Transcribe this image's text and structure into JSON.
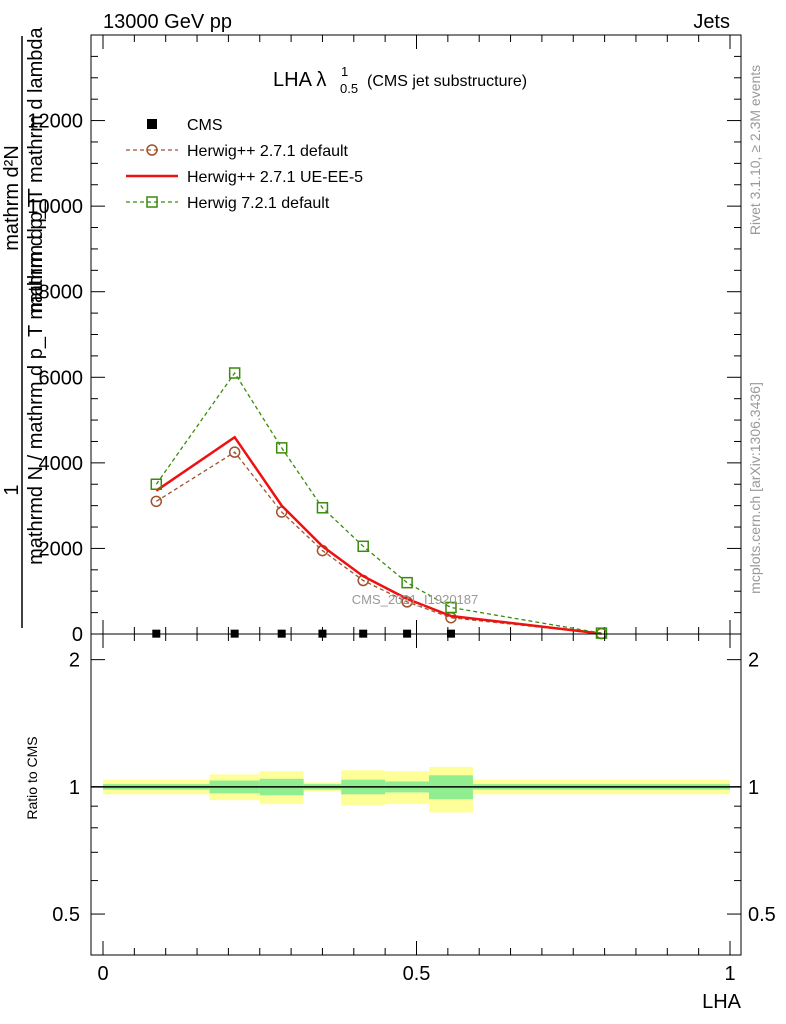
{
  "header": {
    "left": "13000 GeV pp",
    "right": "Jets"
  },
  "side_labels": {
    "rivet": "Rivet 3.1.10, ≥ 2.3M events",
    "mcplots": "mcplots.cern.ch [arXiv:1306.3436]"
  },
  "watermark": "CMS_2021_I1920187",
  "chart_data": [
    {
      "panel": "main",
      "type": "line",
      "title": "LHA λ",
      "title_sup": "1",
      "title_sub": "0.5",
      "title_note": "(CMS jet substructure)",
      "ylabel": {
        "numerator": "1",
        "denominator": "mathrmd N / mathrm d p_T mathrm d p_T",
        "numerator2": "mathrm d²N",
        "denominator2": "mathrm d p_T mathrm d lambda"
      },
      "xlim": [
        0,
        1
      ],
      "ylim": [
        0,
        14000
      ],
      "yticks": [
        0,
        2000,
        4000,
        6000,
        8000,
        10000,
        12000
      ],
      "ytick_labels": [
        "0",
        "2000",
        "4000",
        "6000",
        "8000",
        "10000",
        "12000"
      ],
      "legend_position": "top-left",
      "series": [
        {
          "name": "CMS",
          "style": "marker-square",
          "color": "#000000",
          "x": [
            0.085,
            0.21,
            0.285,
            0.35,
            0.415,
            0.485,
            0.555
          ],
          "y": [
            8,
            8,
            8,
            8,
            8,
            8,
            8
          ]
        },
        {
          "name": "Herwig++ 2.7.1 default",
          "style": "dashed-circle",
          "color": "#a0522d",
          "x": [
            0.085,
            0.21,
            0.285,
            0.35,
            0.415,
            0.485,
            0.555,
            0.795
          ],
          "y": [
            3100,
            4250,
            2850,
            1950,
            1250,
            750,
            380,
            10
          ]
        },
        {
          "name": "Herwig++ 2.7.1 UE-EE-5",
          "style": "solid",
          "color": "#ee1111",
          "x": [
            0.085,
            0.21,
            0.285,
            0.35,
            0.415,
            0.485,
            0.555,
            0.795
          ],
          "y": [
            3350,
            4600,
            3000,
            2050,
            1350,
            820,
            420,
            10
          ]
        },
        {
          "name": "Herwig 7.2.1 default",
          "style": "dashed-square",
          "color": "#3a8a0c",
          "x": [
            0.085,
            0.21,
            0.285,
            0.35,
            0.415,
            0.485,
            0.555,
            0.795
          ],
          "y": [
            3500,
            6100,
            4350,
            2950,
            2050,
            1200,
            620,
            20
          ]
        }
      ]
    },
    {
      "panel": "ratio",
      "type": "area",
      "ylabel": "Ratio to CMS",
      "xlabel": "LHA",
      "xlim": [
        0,
        1
      ],
      "ylim": [
        0.4,
        2.3
      ],
      "yscale": "log",
      "yticks": [
        0.5,
        1,
        2
      ],
      "ytick_labels": [
        "0.5",
        "1",
        "2"
      ],
      "xticks": [
        0,
        0.5,
        1
      ],
      "xtick_labels": [
        "0",
        "0.5",
        "1"
      ],
      "bins": [
        0,
        0.17,
        0.25,
        0.32,
        0.38,
        0.45,
        0.52,
        0.59,
        1.0
      ],
      "band_inner": {
        "color": "#90ee90",
        "low": [
          0.985,
          0.965,
          0.955,
          0.985,
          0.96,
          0.97,
          0.935,
          0.985
        ],
        "high": [
          1.015,
          1.035,
          1.045,
          1.015,
          1.04,
          1.03,
          1.065,
          1.015
        ]
      },
      "band_outer": {
        "color": "#ffff99",
        "low": [
          0.96,
          0.93,
          0.91,
          0.975,
          0.905,
          0.91,
          0.87,
          0.96
        ],
        "high": [
          1.04,
          1.07,
          1.09,
          1.025,
          1.095,
          1.09,
          1.115,
          1.04
        ]
      },
      "reference": 1
    }
  ]
}
